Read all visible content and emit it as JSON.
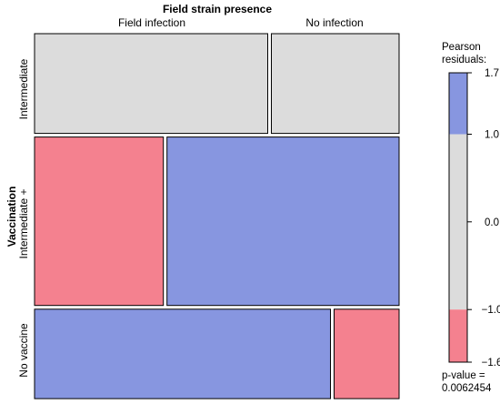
{
  "chart_data": {
    "type": "mosaic",
    "top_label": "Field strain presence",
    "side_label": "Vaccination",
    "columns": [
      "Field infection",
      "No infection"
    ],
    "rows": [
      {
        "name": "Intermediate",
        "cells": [
          {
            "column": "Field infection",
            "fraction": 0.646,
            "shade": "neutral"
          },
          {
            "column": "No infection",
            "fraction": 0.354,
            "shade": "neutral"
          }
        ]
      },
      {
        "name": "Intermediate +",
        "cells": [
          {
            "column": "Field infection",
            "fraction": 0.357,
            "shade": "negative"
          },
          {
            "column": "No infection",
            "fraction": 0.643,
            "shade": "positive"
          }
        ]
      },
      {
        "name": "No vaccine",
        "cells": [
          {
            "column": "Field infection",
            "fraction": 0.82,
            "shade": "positive"
          },
          {
            "column": "No infection",
            "fraction": 0.18,
            "shade": "negative"
          }
        ]
      }
    ],
    "row_fractions": [
      0.279,
      0.471,
      0.25
    ],
    "legend": {
      "title_line1": "Pearson",
      "title_line2": "residuals:",
      "range": [
        -1.6,
        1.7
      ],
      "ticks": [
        {
          "value": 1.7,
          "label": "1.7"
        },
        {
          "value": 1.0,
          "label": "1.0"
        },
        {
          "value": 0.0,
          "label": "0.0"
        },
        {
          "value": -1.0,
          "label": "−1.0"
        },
        {
          "value": -1.6,
          "label": "−1.6"
        }
      ],
      "pvalue_line1": "p-value =",
      "pvalue_line2": "0.0062454"
    },
    "colors": {
      "positive": "#8796e0",
      "neutral": "#dcdcdc",
      "negative": "#f4818f",
      "border": "#000000"
    }
  }
}
